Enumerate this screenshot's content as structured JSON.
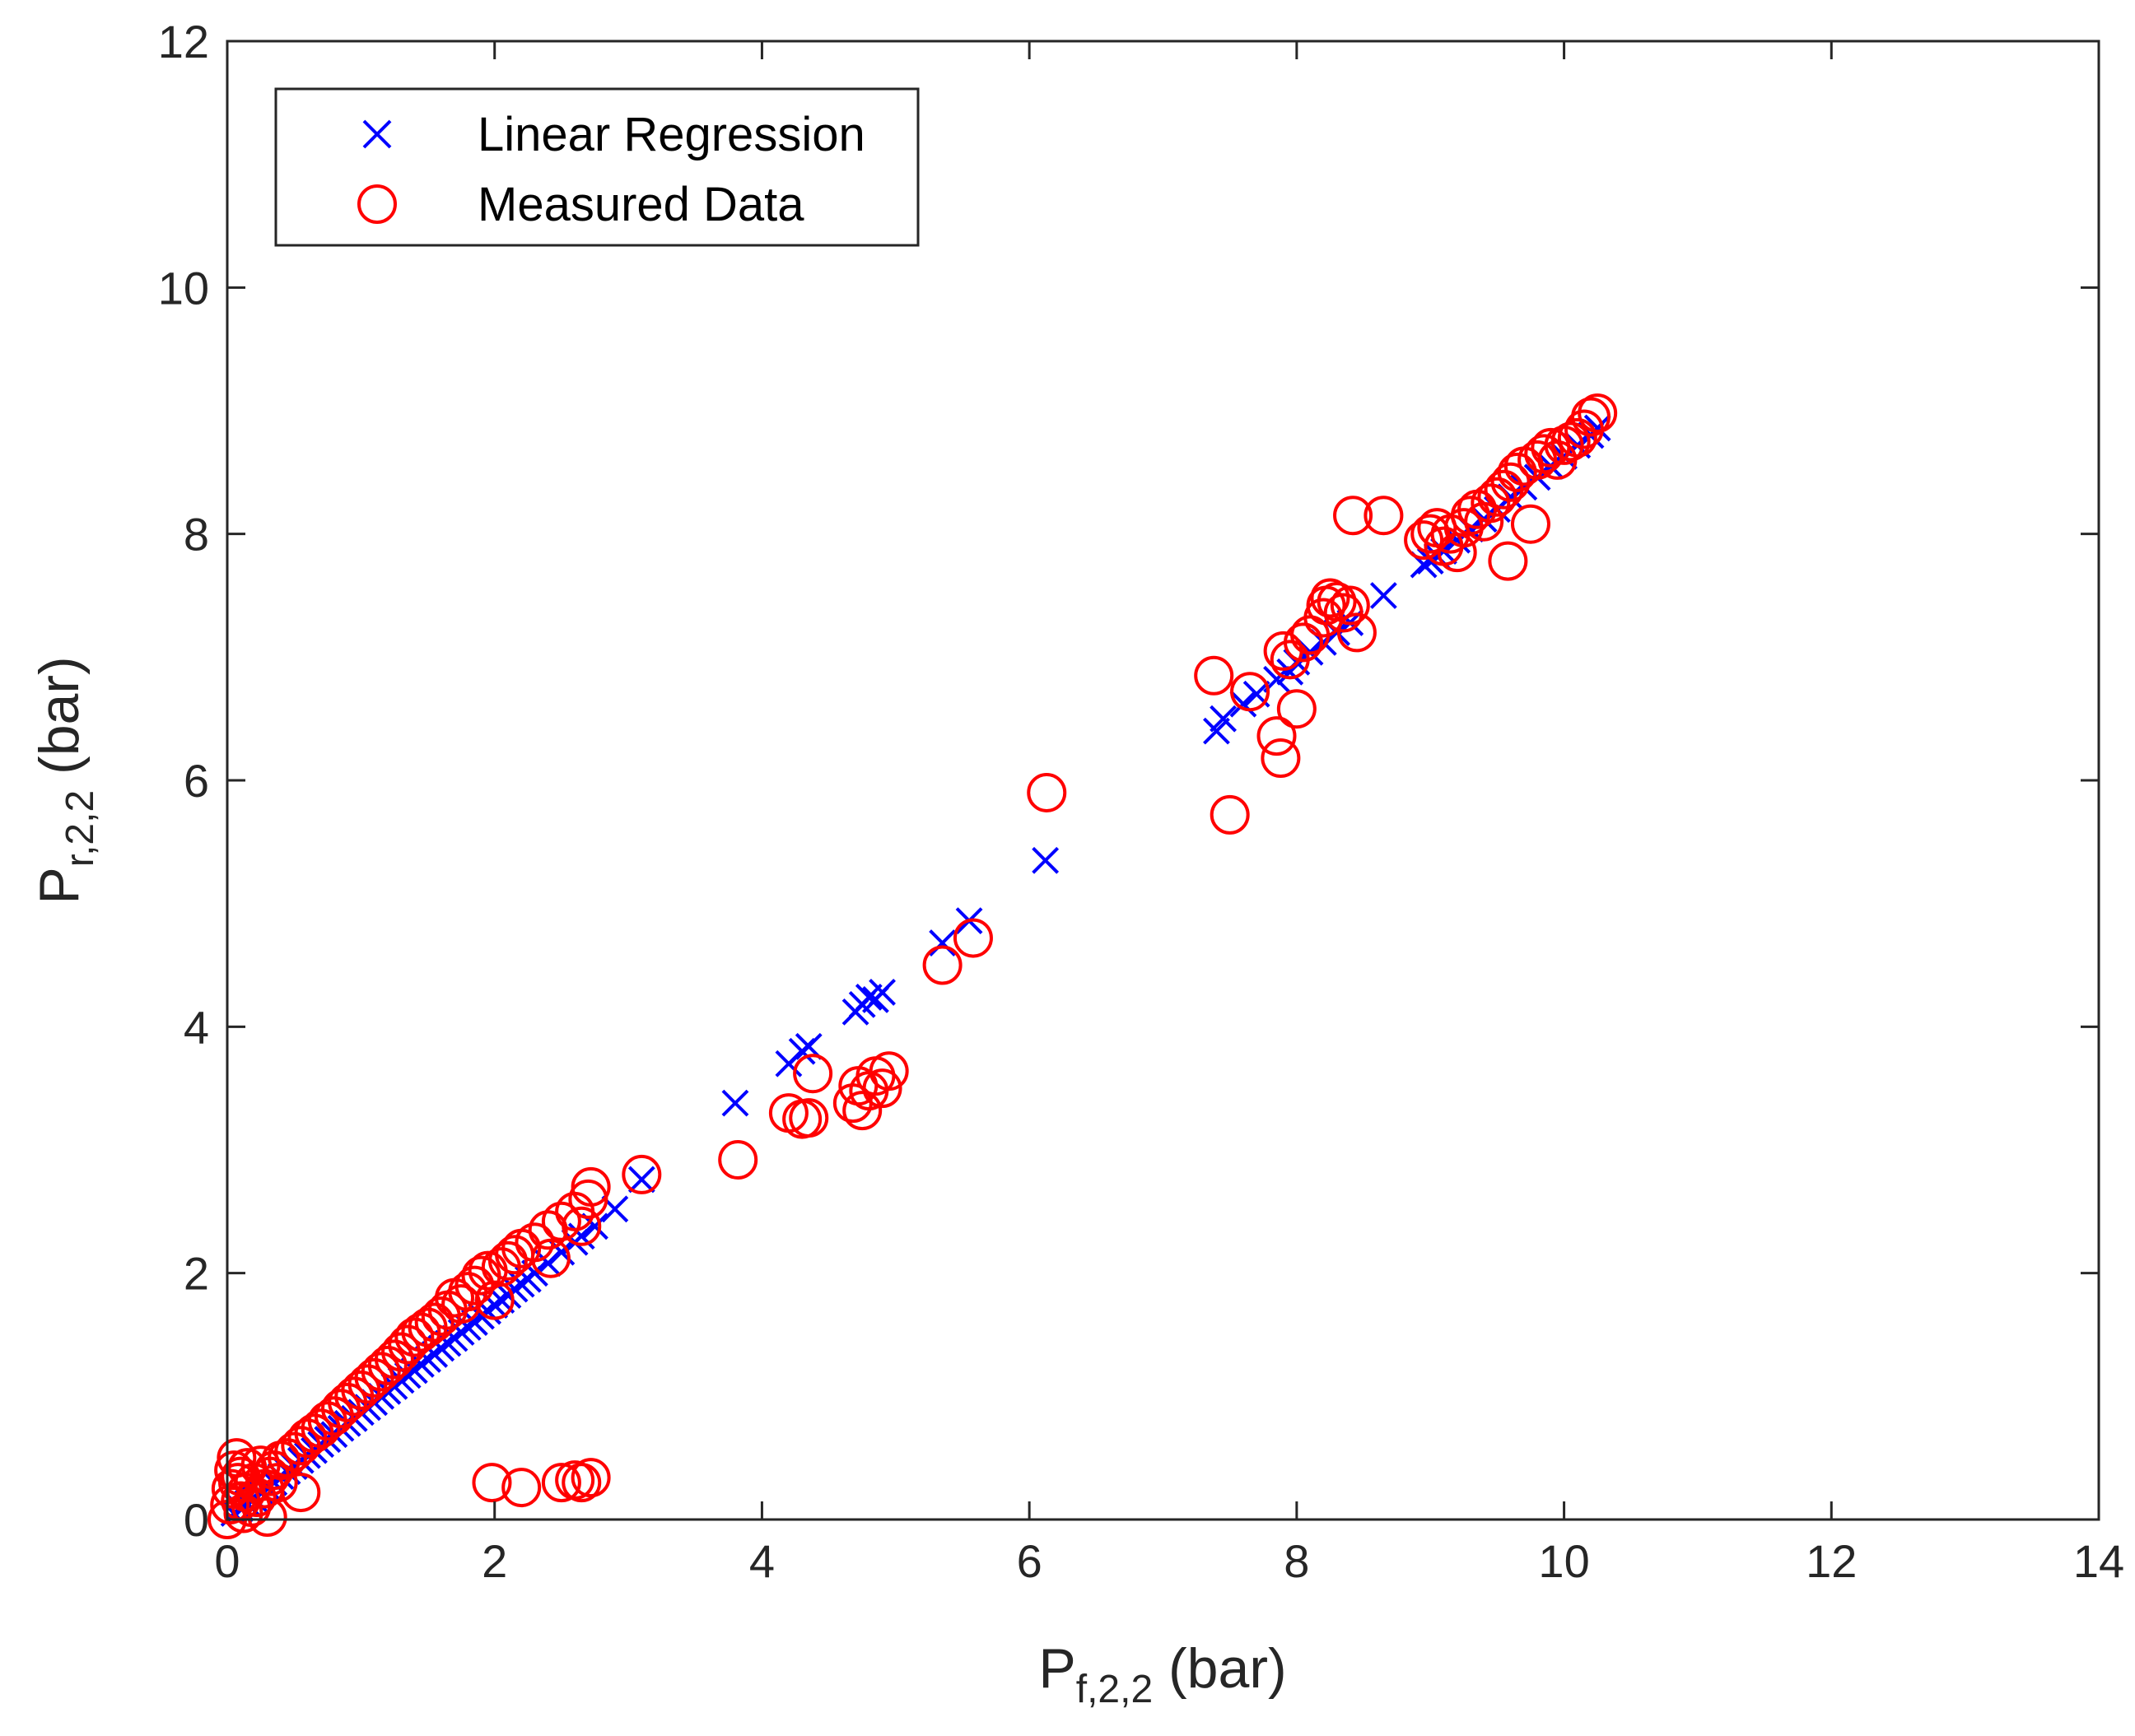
{
  "chart_data": {
    "type": "scatter",
    "xlabel": {
      "main": "P",
      "sub": "f,2,2",
      "unit": " (bar)"
    },
    "ylabel": {
      "main": "P",
      "sub": "r,2,2",
      "unit": " (bar)"
    },
    "xlim": [
      0,
      14
    ],
    "ylim": [
      0,
      12
    ],
    "xticks": [
      "0",
      "2",
      "4",
      "6",
      "8",
      "10",
      "12",
      "14"
    ],
    "yticks": [
      "0",
      "2",
      "4",
      "6",
      "8",
      "10",
      "12"
    ],
    "grid": false,
    "legend_position": "top-left",
    "series": [
      {
        "name": "Linear Regression",
        "marker": "x",
        "color": "#0000ff",
        "points": [
          [
            0.05,
            0.05
          ],
          [
            0.1,
            0.09
          ],
          [
            0.15,
            0.13
          ],
          [
            0.2,
            0.17
          ],
          [
            0.25,
            0.22
          ],
          [
            0.3,
            0.26
          ],
          [
            0.35,
            0.3
          ],
          [
            0.4,
            0.35
          ],
          [
            0.45,
            0.39
          ],
          [
            0.5,
            0.43
          ],
          [
            0.55,
            0.48
          ],
          [
            0.6,
            0.52
          ],
          [
            0.65,
            0.56
          ],
          [
            0.7,
            0.61
          ],
          [
            0.75,
            0.65
          ],
          [
            0.8,
            0.69
          ],
          [
            0.85,
            0.74
          ],
          [
            0.9,
            0.78
          ],
          [
            0.95,
            0.82
          ],
          [
            1.0,
            0.87
          ],
          [
            1.05,
            0.91
          ],
          [
            1.1,
            0.95
          ],
          [
            1.15,
            1.0
          ],
          [
            1.2,
            1.04
          ],
          [
            1.25,
            1.08
          ],
          [
            1.3,
            1.13
          ],
          [
            1.35,
            1.17
          ],
          [
            1.4,
            1.21
          ],
          [
            1.45,
            1.26
          ],
          [
            1.5,
            1.3
          ],
          [
            1.55,
            1.34
          ],
          [
            1.6,
            1.39
          ],
          [
            1.65,
            1.43
          ],
          [
            1.7,
            1.47
          ],
          [
            1.75,
            1.52
          ],
          [
            1.8,
            1.56
          ],
          [
            1.85,
            1.6
          ],
          [
            1.9,
            1.65
          ],
          [
            1.95,
            1.69
          ],
          [
            2.0,
            1.74
          ],
          [
            2.05,
            1.78
          ],
          [
            2.1,
            1.82
          ],
          [
            2.15,
            1.87
          ],
          [
            2.2,
            1.91
          ],
          [
            2.25,
            1.95
          ],
          [
            2.3,
            2.0
          ],
          [
            2.4,
            2.08
          ],
          [
            2.5,
            2.17
          ],
          [
            2.6,
            2.25
          ],
          [
            2.65,
            2.3
          ],
          [
            2.75,
            2.38
          ],
          [
            2.9,
            2.52
          ],
          [
            3.1,
            2.76
          ],
          [
            3.8,
            3.38
          ],
          [
            4.2,
            3.7
          ],
          [
            4.3,
            3.8
          ],
          [
            4.35,
            3.84
          ],
          [
            4.7,
            4.12
          ],
          [
            4.75,
            4.18
          ],
          [
            4.8,
            4.24
          ],
          [
            4.85,
            4.22
          ],
          [
            4.9,
            4.28
          ],
          [
            5.35,
            4.68
          ],
          [
            5.55,
            4.86
          ],
          [
            6.12,
            5.35
          ],
          [
            7.4,
            6.4
          ],
          [
            7.45,
            6.5
          ],
          [
            7.6,
            6.62
          ],
          [
            7.7,
            6.7
          ],
          [
            7.85,
            6.82
          ],
          [
            7.95,
            6.88
          ],
          [
            8.0,
            6.96
          ],
          [
            8.1,
            7.04
          ],
          [
            8.2,
            7.12
          ],
          [
            8.3,
            7.2
          ],
          [
            8.4,
            7.28
          ],
          [
            8.65,
            7.5
          ],
          [
            8.95,
            7.75
          ],
          [
            9.0,
            7.78
          ],
          [
            9.05,
            7.82
          ],
          [
            9.1,
            7.86
          ],
          [
            9.2,
            7.95
          ],
          [
            9.3,
            8.04
          ],
          [
            9.4,
            8.12
          ],
          [
            9.5,
            8.2
          ],
          [
            9.6,
            8.3
          ],
          [
            9.7,
            8.38
          ],
          [
            9.8,
            8.46
          ],
          [
            9.9,
            8.55
          ],
          [
            10.0,
            8.63
          ],
          [
            10.1,
            8.72
          ],
          [
            10.2,
            8.8
          ],
          [
            10.25,
            8.86
          ]
        ]
      },
      {
        "name": "Measured Data",
        "marker": "o",
        "color": "#ff0000",
        "points": [
          [
            0.0,
            0.0
          ],
          [
            0.02,
            0.12
          ],
          [
            0.03,
            0.25
          ],
          [
            0.05,
            0.4
          ],
          [
            0.07,
            0.5
          ],
          [
            0.08,
            0.3
          ],
          [
            0.1,
            0.15
          ],
          [
            0.1,
            0.35
          ],
          [
            0.12,
            0.05
          ],
          [
            0.14,
            0.22
          ],
          [
            0.15,
            0.42
          ],
          [
            0.18,
            0.1
          ],
          [
            0.2,
            0.3
          ],
          [
            0.22,
            0.18
          ],
          [
            0.25,
            0.44
          ],
          [
            0.28,
            0.25
          ],
          [
            0.3,
            0.02
          ],
          [
            0.32,
            0.35
          ],
          [
            0.35,
            0.4
          ],
          [
            0.38,
            0.3
          ],
          [
            0.4,
            0.48
          ],
          [
            0.45,
            0.5
          ],
          [
            0.5,
            0.55
          ],
          [
            0.55,
            0.22
          ],
          [
            0.55,
            0.6
          ],
          [
            0.6,
            0.66
          ],
          [
            0.65,
            0.7
          ],
          [
            0.7,
            0.74
          ],
          [
            0.75,
            0.8
          ],
          [
            0.8,
            0.84
          ],
          [
            0.85,
            0.9
          ],
          [
            0.9,
            0.95
          ],
          [
            0.95,
            1.0
          ],
          [
            1.0,
            1.05
          ],
          [
            1.05,
            1.1
          ],
          [
            1.1,
            1.15
          ],
          [
            1.15,
            1.2
          ],
          [
            1.2,
            1.25
          ],
          [
            1.25,
            1.3
          ],
          [
            1.3,
            1.36
          ],
          [
            1.35,
            1.42
          ],
          [
            1.4,
            1.48
          ],
          [
            1.45,
            1.52
          ],
          [
            1.5,
            1.56
          ],
          [
            1.55,
            1.6
          ],
          [
            1.6,
            1.65
          ],
          [
            1.65,
            1.7
          ],
          [
            1.7,
            1.8
          ],
          [
            1.75,
            1.75
          ],
          [
            1.8,
            1.85
          ],
          [
            1.85,
            1.9
          ],
          [
            1.9,
            1.98
          ],
          [
            1.95,
            2.02
          ],
          [
            2.0,
            1.78
          ],
          [
            2.05,
            2.05
          ],
          [
            2.1,
            2.1
          ],
          [
            2.15,
            2.15
          ],
          [
            2.2,
            2.2
          ],
          [
            2.3,
            2.25
          ],
          [
            2.4,
            2.35
          ],
          [
            2.42,
            2.12
          ],
          [
            2.5,
            2.42
          ],
          [
            2.6,
            2.5
          ],
          [
            2.65,
            2.38
          ],
          [
            2.7,
            2.6
          ],
          [
            2.72,
            2.7
          ],
          [
            3.1,
            2.8
          ],
          [
            1.98,
            0.3
          ],
          [
            2.2,
            0.26
          ],
          [
            2.5,
            0.3
          ],
          [
            2.6,
            0.32
          ],
          [
            2.65,
            0.3
          ],
          [
            2.72,
            0.34
          ],
          [
            3.82,
            2.92
          ],
          [
            4.2,
            3.3
          ],
          [
            4.3,
            3.25
          ],
          [
            4.35,
            3.26
          ],
          [
            4.38,
            3.62
          ],
          [
            4.68,
            3.38
          ],
          [
            4.72,
            3.52
          ],
          [
            4.75,
            3.32
          ],
          [
            4.8,
            3.48
          ],
          [
            4.85,
            3.6
          ],
          [
            4.9,
            3.5
          ],
          [
            4.95,
            3.64
          ],
          [
            5.35,
            4.5
          ],
          [
            5.58,
            4.72
          ],
          [
            6.13,
            5.9
          ],
          [
            7.38,
            6.85
          ],
          [
            7.5,
            5.72
          ],
          [
            7.65,
            6.72
          ],
          [
            7.85,
            6.36
          ],
          [
            7.88,
            6.18
          ],
          [
            7.9,
            7.05
          ],
          [
            7.95,
            6.98
          ],
          [
            8.0,
            6.58
          ],
          [
            8.05,
            7.12
          ],
          [
            8.1,
            7.18
          ],
          [
            8.2,
            7.32
          ],
          [
            8.22,
            7.42
          ],
          [
            8.25,
            7.48
          ],
          [
            8.3,
            7.45
          ],
          [
            8.35,
            7.36
          ],
          [
            8.4,
            7.42
          ],
          [
            8.45,
            7.2
          ],
          [
            8.42,
            8.15
          ],
          [
            8.65,
            8.15
          ],
          [
            8.95,
            7.95
          ],
          [
            9.0,
            8.0
          ],
          [
            9.05,
            8.05
          ],
          [
            9.1,
            7.9
          ],
          [
            9.15,
            8.0
          ],
          [
            9.2,
            7.85
          ],
          [
            9.25,
            8.05
          ],
          [
            9.3,
            8.15
          ],
          [
            9.35,
            8.2
          ],
          [
            9.4,
            8.1
          ],
          [
            9.45,
            8.25
          ],
          [
            9.5,
            8.3
          ],
          [
            9.55,
            8.36
          ],
          [
            9.58,
            7.78
          ],
          [
            9.6,
            8.42
          ],
          [
            9.65,
            8.5
          ],
          [
            9.7,
            8.55
          ],
          [
            9.75,
            8.08
          ],
          [
            9.8,
            8.6
          ],
          [
            9.85,
            8.65
          ],
          [
            9.9,
            8.7
          ],
          [
            9.95,
            8.6
          ],
          [
            10.0,
            8.72
          ],
          [
            10.05,
            8.75
          ],
          [
            10.1,
            8.78
          ],
          [
            10.15,
            8.85
          ],
          [
            10.2,
            8.95
          ],
          [
            10.25,
            8.98
          ]
        ]
      }
    ]
  }
}
